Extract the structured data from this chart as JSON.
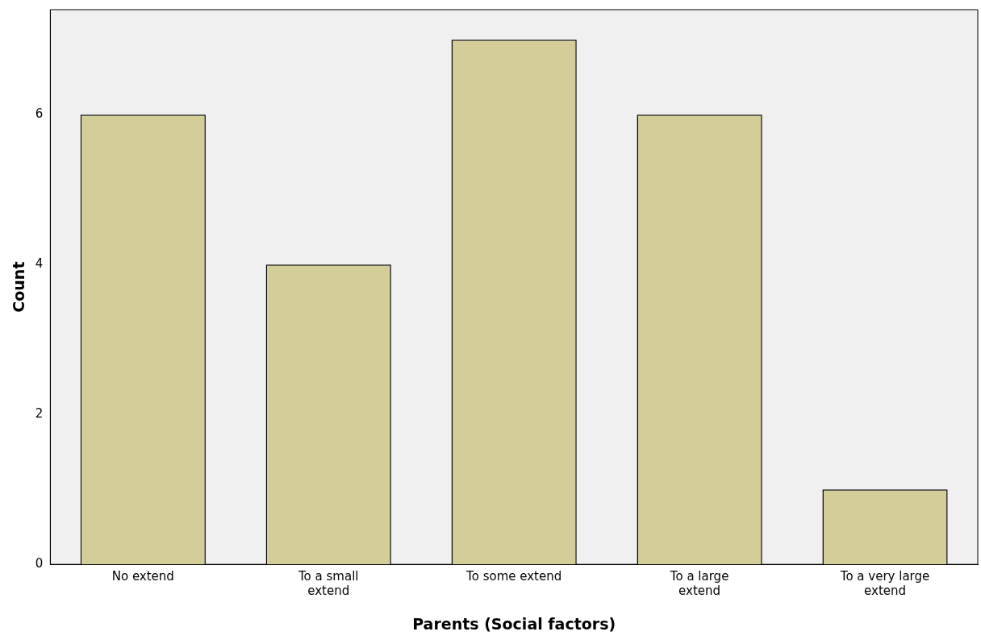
{
  "chart_data": {
    "type": "bar",
    "xlabel": "Parents (Social factors)",
    "ylabel": "Count",
    "categories": [
      "No extend",
      "To a small extend",
      "To some extend",
      "To a large extend",
      "To a very large extend"
    ],
    "values": [
      6,
      4,
      7,
      6,
      1
    ],
    "color": "#d3ce97",
    "ylim": [
      0,
      7.4
    ],
    "yticks": [
      0,
      2,
      4,
      6
    ],
    "grid": false,
    "legend": false
  }
}
